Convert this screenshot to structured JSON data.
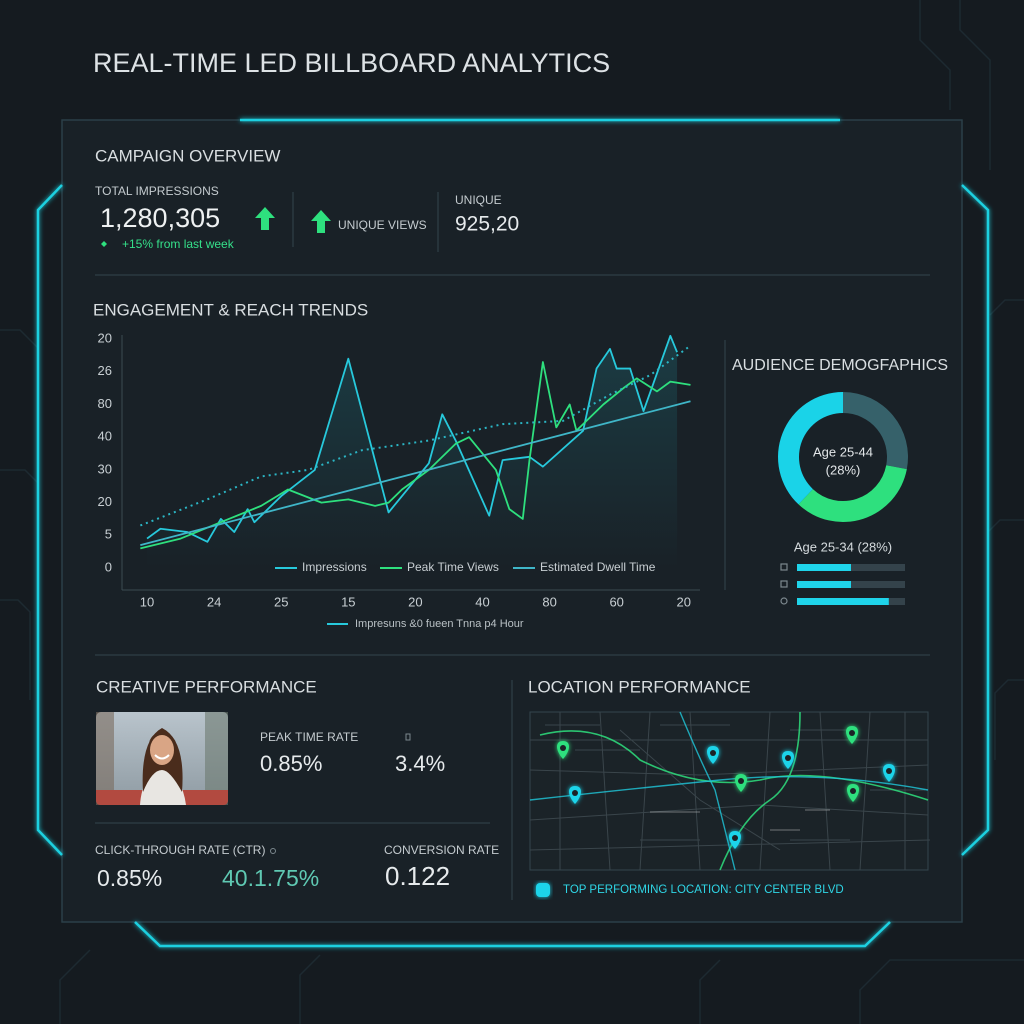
{
  "header": {
    "title": "REAL-TIME LED BILLBOARD ANALYTICS"
  },
  "overview": {
    "title": "CAMPAIGN OVERVIEW",
    "total_label": "TOTAL IMPRESSIONS",
    "total_value": "1,280,305",
    "change": "+15% from last week",
    "unique_views_label": "UNIQUE VIEWS",
    "unique_label": "UNIQUE",
    "unique_value": "925,20"
  },
  "engagement": {
    "title": "ENGAGEMENT & REACH TRENDS",
    "footnote": "Impresuns &0 fueen Tnna p4 Hour"
  },
  "demographics": {
    "title": "AUDIENCE DEMOGFAPHICS"
  },
  "creative": {
    "title": "CREATIVE PERFORMANCE",
    "peak_label": "PEAK TIME RATE",
    "peak_value": "0.85%",
    "second_value": "3.4%",
    "ctr_label": "CLICK-THROUGH RATE (CTR)",
    "ctr_value": "0.85%",
    "ctr_second_value": "40.1.75%",
    "conversion_label": "CONVERSION RATE",
    "conversion_value": "0.122"
  },
  "location": {
    "title": "LOCATION PERFORMANCE",
    "top_location": "TOP PERFORMING LOCATION: CITY CENTER BLVD"
  },
  "chart_data": [
    {
      "type": "line",
      "xlim": [
        -0.4,
        8.2
      ],
      "ylim": [
        0,
        7.3
      ],
      "grid": false,
      "xticks": [
        {
          "value": 0,
          "label": "10"
        },
        {
          "value": 1,
          "label": "24"
        },
        {
          "value": 2,
          "label": "25"
        },
        {
          "value": 3,
          "label": "15"
        },
        {
          "value": 4,
          "label": "20"
        },
        {
          "value": 5,
          "label": "40"
        },
        {
          "value": 6,
          "label": "80"
        },
        {
          "value": 7,
          "label": "60"
        },
        {
          "value": 8,
          "label": "20"
        }
      ],
      "yticks": [
        {
          "value": 7,
          "label": "20"
        },
        {
          "value": 6,
          "label": "26"
        },
        {
          "value": 5,
          "label": "80"
        },
        {
          "value": 4,
          "label": "40"
        },
        {
          "value": 3,
          "label": "30"
        },
        {
          "value": 2,
          "label": "20"
        },
        {
          "value": 1,
          "label": "5"
        },
        0
      ],
      "series": [
        {
          "name": "Impressions",
          "color": "#27c9dc",
          "x": [
            0,
            0.2,
            0.6,
            0.9,
            1.1,
            1.3,
            1.5,
            1.6,
            2.0,
            2.5,
            3.0,
            3.6,
            4.2,
            4.4,
            4.6,
            5.1,
            5.3,
            5.7,
            5.9,
            6.5,
            6.7,
            6.9,
            7.0,
            7.2,
            7.4,
            7.8,
            7.9
          ],
          "values": [
            0.9,
            1.2,
            1.1,
            0.8,
            1.5,
            1.1,
            1.8,
            1.4,
            2.2,
            3.0,
            6.4,
            1.7,
            3.2,
            4.7,
            3.9,
            1.6,
            3.3,
            3.4,
            3.1,
            4.2,
            6.1,
            6.7,
            6.1,
            6.1,
            4.8,
            7.1,
            6.6
          ]
        },
        {
          "name": "Peak Time Views",
          "color": "#2ee07e",
          "x": [
            -0.1,
            0.5,
            1.1,
            1.7,
            2.1,
            2.6,
            3.0,
            3.4,
            3.6,
            3.8,
            4.2,
            4.6,
            4.8,
            5.0,
            5.2,
            5.4,
            5.6,
            5.7,
            5.9,
            6.1,
            6.3,
            6.4,
            6.8,
            7.1,
            7.3,
            7.6,
            7.8,
            8.1
          ],
          "values": [
            0.6,
            0.9,
            1.4,
            1.9,
            2.4,
            2.0,
            2.1,
            1.9,
            2.0,
            2.4,
            3.0,
            3.8,
            4.0,
            3.5,
            3.0,
            1.8,
            1.5,
            3.3,
            6.3,
            4.3,
            5.0,
            4.2,
            5.0,
            5.5,
            5.8,
            5.4,
            5.7,
            5.6
          ]
        },
        {
          "name": "Estimated Dwell Time",
          "color": "#3fb6c8",
          "x": [
            -0.1,
            8.1
          ],
          "values": [
            0.7,
            5.1
          ]
        },
        {
          "color": "#2bb5c4",
          "dashed": true,
          "x": [
            -0.1,
            0.9,
            1.7,
            2.4,
            3.2,
            4.2,
            5.3,
            6.2,
            6.9,
            7.5,
            8.1
          ],
          "values": [
            1.3,
            2.1,
            2.8,
            3.0,
            3.6,
            3.9,
            4.4,
            4.5,
            5.3,
            5.9,
            6.8
          ]
        }
      ]
    },
    {
      "type": "pie",
      "values": [
        28,
        34,
        38
      ],
      "colors": [
        "#36616a",
        "#2ee07e",
        "#1ad3e8"
      ],
      "annotations": [
        "Age 25-44",
        "(28%)"
      ]
    },
    {
      "type": "bar",
      "orientation": "horizontal",
      "title": "Age 25-34 (28%)",
      "xlim": [
        0,
        100
      ],
      "values": [
        50,
        50,
        85
      ],
      "color": "#1fd4ea"
    }
  ]
}
